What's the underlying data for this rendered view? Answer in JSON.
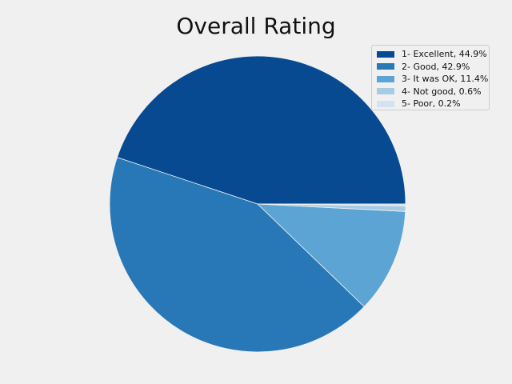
{
  "chart_data": {
    "type": "pie",
    "title": "Overall Rating",
    "categories": [
      "1- Excellent, 44.9%",
      "2- Good, 42.9%",
      "3- It was OK, 11.4%",
      "4- Not good, 0.6%",
      "5- Poor, 0.2%"
    ],
    "values": [
      44.9,
      42.9,
      11.4,
      0.6,
      0.2
    ],
    "colors": [
      "#084a91",
      "#2878b8",
      "#5ca4d3",
      "#a6cce4",
      "#d3e3f3"
    ],
    "legend_position": "top-right",
    "start_angle_deg": 0,
    "direction": "counterclockwise",
    "background": "#f0f0f0"
  }
}
